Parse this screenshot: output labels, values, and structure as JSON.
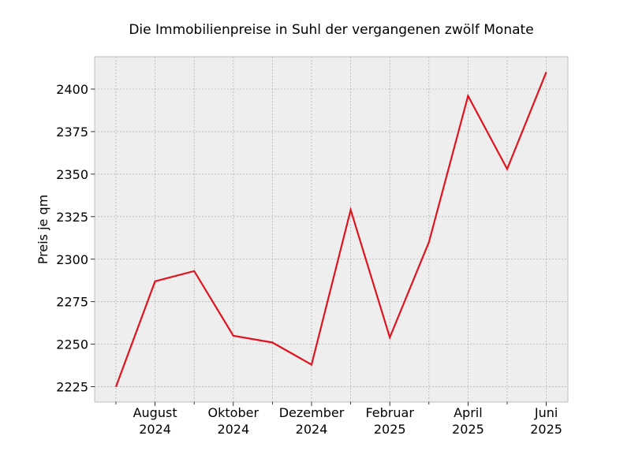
{
  "chart_data": {
    "type": "line",
    "title": "Die Immobilienpreise in Suhl der vergangenen zwölf Monate",
    "xlabel": "",
    "ylabel": "Preis je qm",
    "x": [
      "2024-07",
      "2024-08",
      "2024-09",
      "2024-10",
      "2024-11",
      "2024-12",
      "2025-01",
      "2025-02",
      "2025-03",
      "2025-04",
      "2025-05",
      "2025-06"
    ],
    "x_ticks": [
      {
        "index": 1,
        "label": [
          "August",
          "2024"
        ]
      },
      {
        "index": 3,
        "label": [
          "Oktober",
          "2024"
        ]
      },
      {
        "index": 5,
        "label": [
          "Dezember",
          "2024"
        ]
      },
      {
        "index": 7,
        "label": [
          "Februar",
          "2025"
        ]
      },
      {
        "index": 9,
        "label": [
          "April",
          "2025"
        ]
      },
      {
        "index": 11,
        "label": [
          "Juni",
          "2025"
        ]
      }
    ],
    "y_ticks": [
      2225,
      2250,
      2275,
      2300,
      2325,
      2350,
      2375,
      2400
    ],
    "ylim": [
      2216,
      2419
    ],
    "grid": true,
    "series": [
      {
        "values": [
          2225,
          2287,
          2293,
          2255,
          2251,
          2238,
          2329,
          2254,
          2310,
          2396,
          2353,
          2410
        ],
        "color": "#e0141e"
      }
    ]
  }
}
